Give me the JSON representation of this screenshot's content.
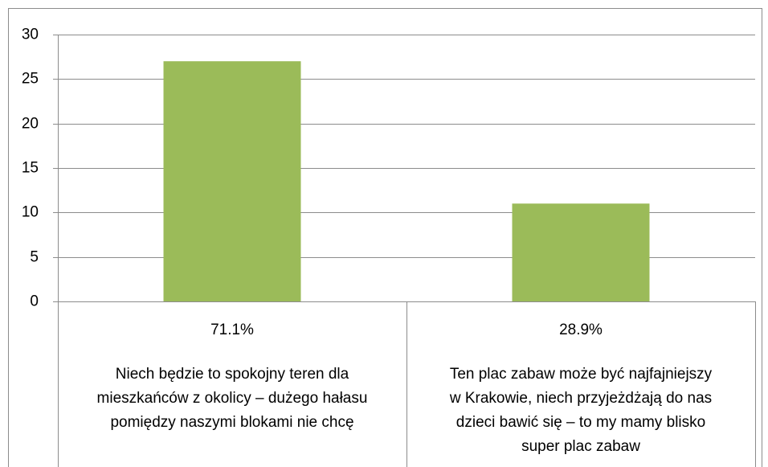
{
  "chart_data": {
    "type": "bar",
    "categories": [
      [
        "Niech będzie to spokojny teren dla",
        "mieszkańców z okolicy – dużego hałasu",
        "pomiędzy naszymi blokami nie chcę"
      ],
      [
        "Ten plac zabaw może być najfajniejszy",
        "w Krakowie, niech przyjeżdżają do nas",
        "dzieci bawić się – to my mamy blisko",
        "super plac zabaw"
      ]
    ],
    "shares": [
      {
        "value": 71.1,
        "label": "71.1%"
      },
      {
        "value": 28.9,
        "label": "28.9%"
      }
    ],
    "values": [
      27,
      11
    ],
    "color": "#9bbb59",
    "ylim": [
      0,
      30
    ],
    "yticks": [
      0,
      5,
      10,
      15,
      20,
      25,
      30
    ],
    "grid": true
  }
}
